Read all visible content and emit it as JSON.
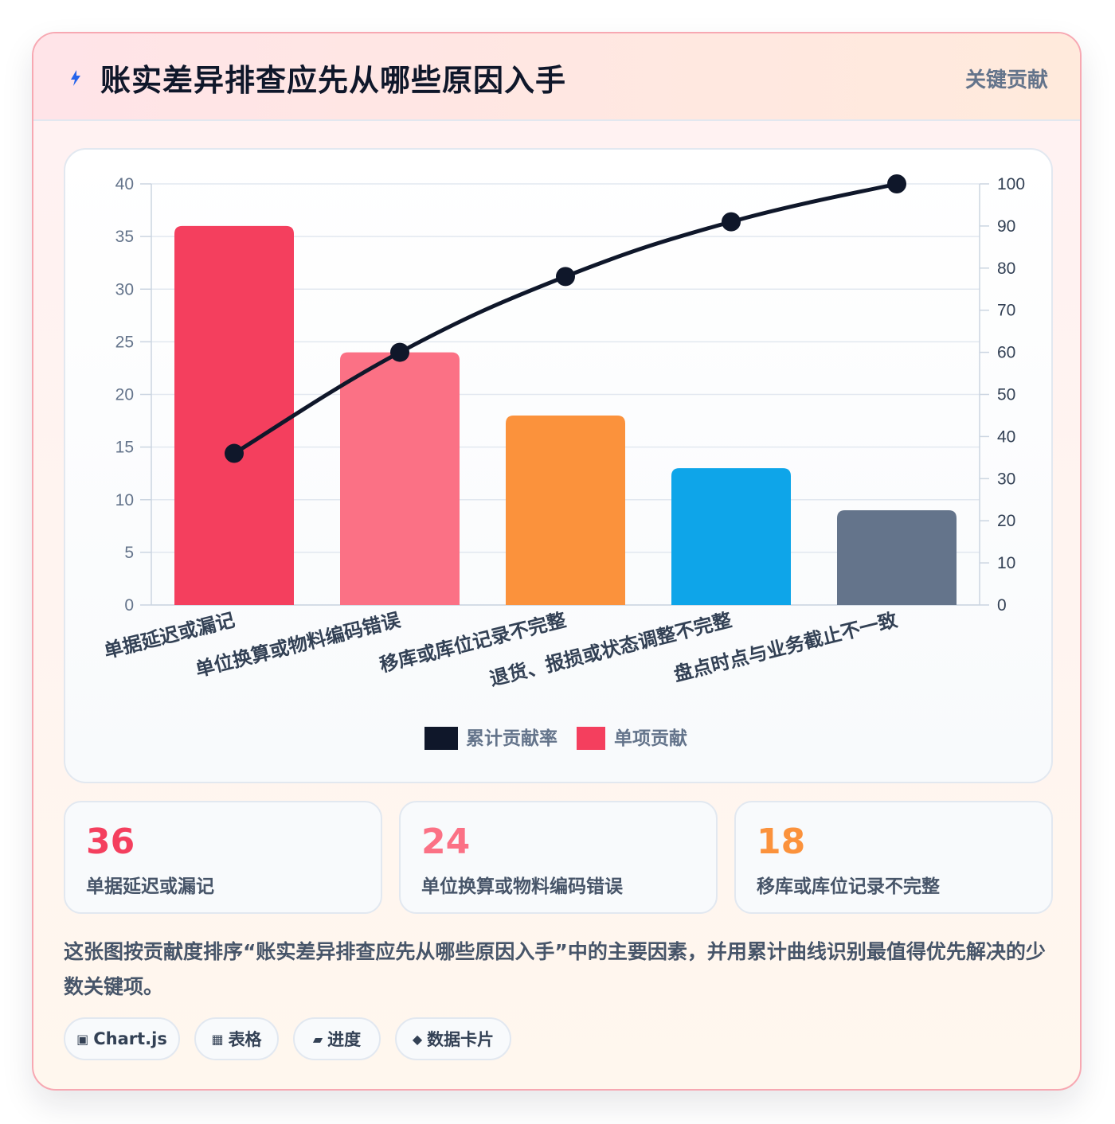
{
  "header": {
    "title": "账实差异排查应先从哪些原因入手",
    "tag": "关键贡献",
    "icon": "lightning-bolt-icon"
  },
  "colors": {
    "accent_line": "#0f172a",
    "bar_colors": [
      "#f43f5e",
      "#fb7185",
      "#fb923c",
      "#0ea5e9",
      "#64748b"
    ]
  },
  "chart_data": {
    "type": "bar",
    "categories": [
      "单据延迟或漏记",
      "单位换算或物料编码错误",
      "移库或库位记录不完整",
      "退货、报损或状态调整不完整",
      "盘点时点与业务截止不一致"
    ],
    "series": [
      {
        "name": "单项贡献",
        "type": "bar",
        "axis": "left",
        "values": [
          36,
          24,
          18,
          13,
          9
        ]
      },
      {
        "name": "累计贡献率",
        "type": "line",
        "axis": "right",
        "values": [
          36,
          60,
          78,
          91,
          100
        ]
      }
    ],
    "ylim": [
      0,
      40
    ],
    "yticks": [
      0,
      5,
      10,
      15,
      20,
      25,
      30,
      35,
      40
    ],
    "y2lim": [
      0,
      100
    ],
    "y2ticks": [
      0,
      10,
      20,
      30,
      40,
      50,
      60,
      70,
      80,
      90,
      100
    ],
    "legend": [
      "累计贡献率",
      "单项贡献"
    ],
    "legend_position": "bottom",
    "grid": true
  },
  "stats": [
    {
      "value": "36",
      "label": "单据延迟或漏记",
      "color": "#f43f5e"
    },
    {
      "value": "24",
      "label": "单位换算或物料编码错误",
      "color": "#fb7185"
    },
    {
      "value": "18",
      "label": "移库或库位记录不完整",
      "color": "#fb923c"
    }
  ],
  "description": "这张图按贡献度排序“账实差异排查应先从哪些原因入手”中的主要因素，并用累计曲线识别最值得优先解决的少数关键项。",
  "pills": [
    {
      "icon": "▣",
      "label": "Chart.js"
    },
    {
      "icon": "▦",
      "label": "表格"
    },
    {
      "icon": "▰",
      "label": "进度"
    },
    {
      "icon": "◆",
      "label": "数据卡片"
    }
  ]
}
